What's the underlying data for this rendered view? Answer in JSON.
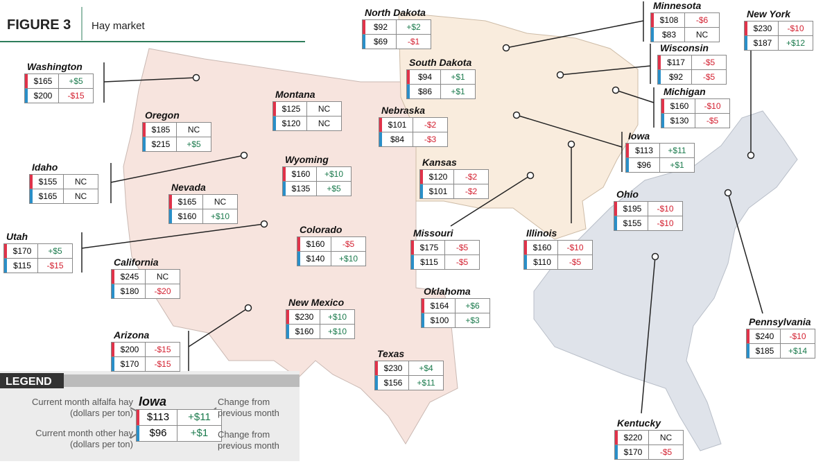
{
  "header": {
    "figure": "FIGURE 3",
    "title": "Hay market"
  },
  "states": [
    {
      "name": "Washington",
      "alfalfa": "$165",
      "alfalfa_change": "+$5",
      "other": "$200",
      "other_change": "-$15"
    },
    {
      "name": "Oregon",
      "alfalfa": "$185",
      "alfalfa_change": "NC",
      "other": "$215",
      "other_change": "+$5"
    },
    {
      "name": "Idaho",
      "alfalfa": "$155",
      "alfalfa_change": "NC",
      "other": "$165",
      "other_change": "NC"
    },
    {
      "name": "Nevada",
      "alfalfa": "$165",
      "alfalfa_change": "NC",
      "other": "$160",
      "other_change": "+$10"
    },
    {
      "name": "Utah",
      "alfalfa": "$170",
      "alfalfa_change": "+$5",
      "other": "$115",
      "other_change": "-$15"
    },
    {
      "name": "California",
      "alfalfa": "$245",
      "alfalfa_change": "NC",
      "other": "$180",
      "other_change": "-$20"
    },
    {
      "name": "Arizona",
      "alfalfa": "$200",
      "alfalfa_change": "-$15",
      "other": "$170",
      "other_change": "-$15"
    },
    {
      "name": "Montana",
      "alfalfa": "$125",
      "alfalfa_change": "NC",
      "other": "$120",
      "other_change": "NC"
    },
    {
      "name": "Wyoming",
      "alfalfa": "$160",
      "alfalfa_change": "+$10",
      "other": "$135",
      "other_change": "+$5"
    },
    {
      "name": "Colorado",
      "alfalfa": "$160",
      "alfalfa_change": "-$5",
      "other": "$140",
      "other_change": "+$10"
    },
    {
      "name": "New Mexico",
      "alfalfa": "$230",
      "alfalfa_change": "+$10",
      "other": "$160",
      "other_change": "+$10"
    },
    {
      "name": "Texas",
      "alfalfa": "$230",
      "alfalfa_change": "+$4",
      "other": "$156",
      "other_change": "+$11"
    },
    {
      "name": "Oklahoma",
      "alfalfa": "$164",
      "alfalfa_change": "+$6",
      "other": "$100",
      "other_change": "+$3"
    },
    {
      "name": "Kansas",
      "alfalfa": "$120",
      "alfalfa_change": "-$2",
      "other": "$101",
      "other_change": "-$2"
    },
    {
      "name": "Nebraska",
      "alfalfa": "$101",
      "alfalfa_change": "-$2",
      "other": "$84",
      "other_change": "-$3"
    },
    {
      "name": "South Dakota",
      "alfalfa": "$94",
      "alfalfa_change": "+$1",
      "other": "$86",
      "other_change": "+$1"
    },
    {
      "name": "North Dakota",
      "alfalfa": "$92",
      "alfalfa_change": "+$2",
      "other": "$69",
      "other_change": "-$1"
    },
    {
      "name": "Minnesota",
      "alfalfa": "$108",
      "alfalfa_change": "-$6",
      "other": "$83",
      "other_change": "NC"
    },
    {
      "name": "Wisconsin",
      "alfalfa": "$117",
      "alfalfa_change": "-$5",
      "other": "$92",
      "other_change": "-$5"
    },
    {
      "name": "Michigan",
      "alfalfa": "$160",
      "alfalfa_change": "-$10",
      "other": "$130",
      "other_change": "-$5"
    },
    {
      "name": "Iowa",
      "alfalfa": "$113",
      "alfalfa_change": "+$11",
      "other": "$96",
      "other_change": "+$1"
    },
    {
      "name": "Missouri",
      "alfalfa": "$175",
      "alfalfa_change": "-$5",
      "other": "$115",
      "other_change": "-$5"
    },
    {
      "name": "Illinois",
      "alfalfa": "$160",
      "alfalfa_change": "-$10",
      "other": "$110",
      "other_change": "-$5"
    },
    {
      "name": "Ohio",
      "alfalfa": "$195",
      "alfalfa_change": "-$10",
      "other": "$155",
      "other_change": "-$10"
    },
    {
      "name": "New York",
      "alfalfa": "$230",
      "alfalfa_change": "-$10",
      "other": "$187",
      "other_change": "+$12"
    },
    {
      "name": "Pennsylvania",
      "alfalfa": "$240",
      "alfalfa_change": "-$10",
      "other": "$185",
      "other_change": "+$14"
    },
    {
      "name": "Kentucky",
      "alfalfa": "$220",
      "alfalfa_change": "NC",
      "other": "$170",
      "other_change": "-$5"
    }
  ],
  "legend": {
    "title": "LEGEND",
    "alfalfa_label": "Current month alfalfa hay",
    "alfalfa_unit": "(dollars per ton)",
    "other_label": "Current month other hay",
    "other_unit": "(dollars per ton)",
    "change_top": [
      "Change from",
      "previous month"
    ],
    "change_bottom": [
      "Change from",
      "previous month"
    ],
    "example": {
      "name": "Iowa",
      "alfalfa": "$113",
      "alfalfa_change": "+$11",
      "other": "$96",
      "other_change": "+$1"
    }
  }
}
